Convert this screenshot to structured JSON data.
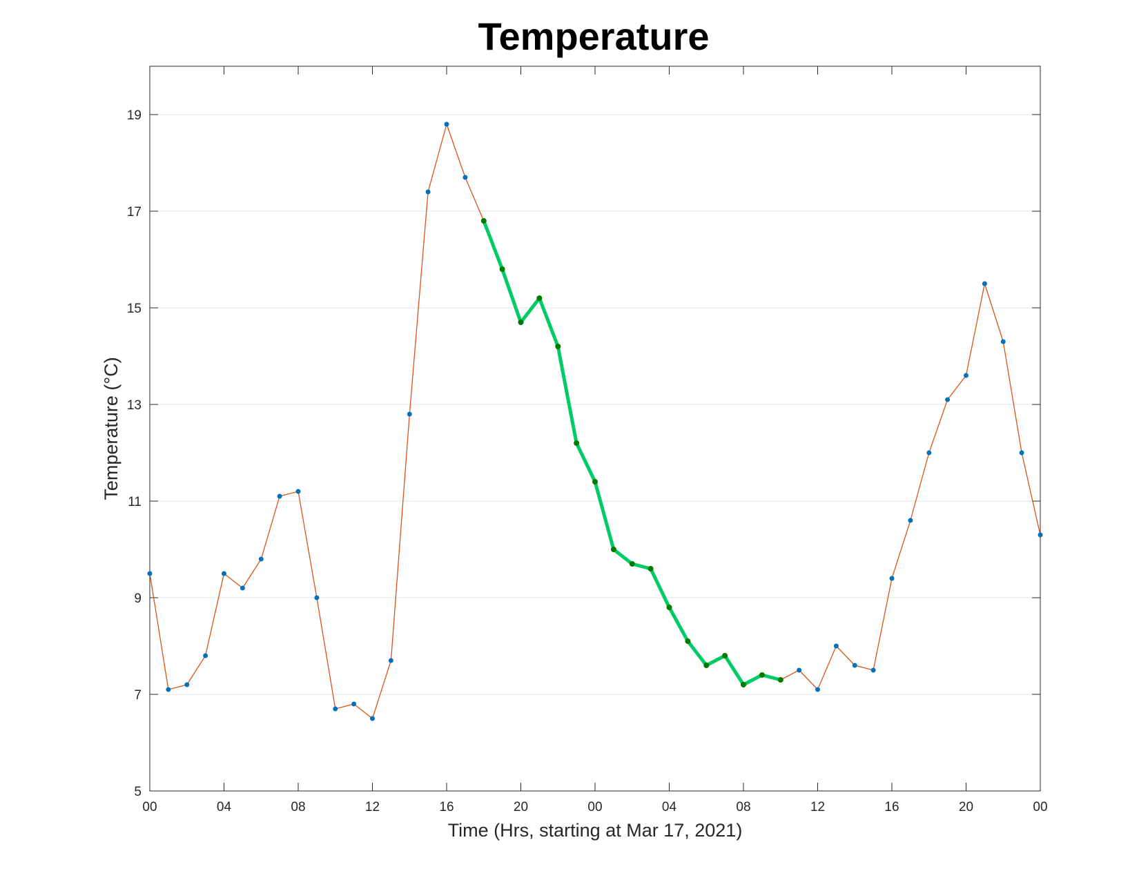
{
  "chart_data": {
    "type": "line",
    "title": "Temperature",
    "xlabel": "Time (Hrs, starting at Mar 17, 2021)",
    "ylabel": "Temperature (°C)",
    "x_unit": "hours",
    "xlim": [
      0,
      48
    ],
    "ylim": [
      5,
      20
    ],
    "yticks": [
      5,
      7,
      9,
      11,
      13,
      15,
      17,
      19
    ],
    "xticks": [
      0,
      4,
      8,
      12,
      16,
      20,
      24,
      28,
      32,
      36,
      40,
      44,
      48
    ],
    "xtick_labels": [
      "00",
      "04",
      "08",
      "12",
      "16",
      "20",
      "00",
      "04",
      "08",
      "12",
      "16",
      "20",
      "00"
    ],
    "grid": "horizontal",
    "x": [
      0,
      1,
      2,
      3,
      4,
      5,
      6,
      7,
      8,
      9,
      10,
      11,
      12,
      13,
      14,
      15,
      16,
      17,
      18,
      19,
      20,
      21,
      22,
      23,
      24,
      25,
      26,
      27,
      28,
      29,
      30,
      31,
      32,
      33,
      34,
      35,
      36,
      37,
      38,
      39,
      40,
      41,
      42,
      43,
      44,
      45,
      46,
      47,
      48
    ],
    "series": [
      {
        "values": [
          9.5,
          7.1,
          7.2,
          7.8,
          9.5,
          9.2,
          9.8,
          11.1,
          11.2,
          9.0,
          6.7,
          6.8,
          6.5,
          7.7,
          12.8,
          17.4,
          18.8,
          17.7,
          16.8,
          15.8,
          14.7,
          15.2,
          14.2,
          12.2,
          11.4,
          10.0,
          9.7,
          9.6,
          8.8,
          8.1,
          7.6,
          7.8,
          7.2,
          7.4,
          7.3,
          7.5,
          7.1,
          8.0,
          7.6,
          7.5,
          9.4,
          10.6,
          12.0,
          13.1,
          13.6,
          15.5,
          14.3,
          12.0,
          10.3
        ],
        "line_color": "#d95319",
        "marker_color": "#0072bd"
      }
    ],
    "highlight": {
      "x_start": 18,
      "x_end": 34,
      "line_color": "#00cc66",
      "marker_color": "#007a00"
    }
  }
}
